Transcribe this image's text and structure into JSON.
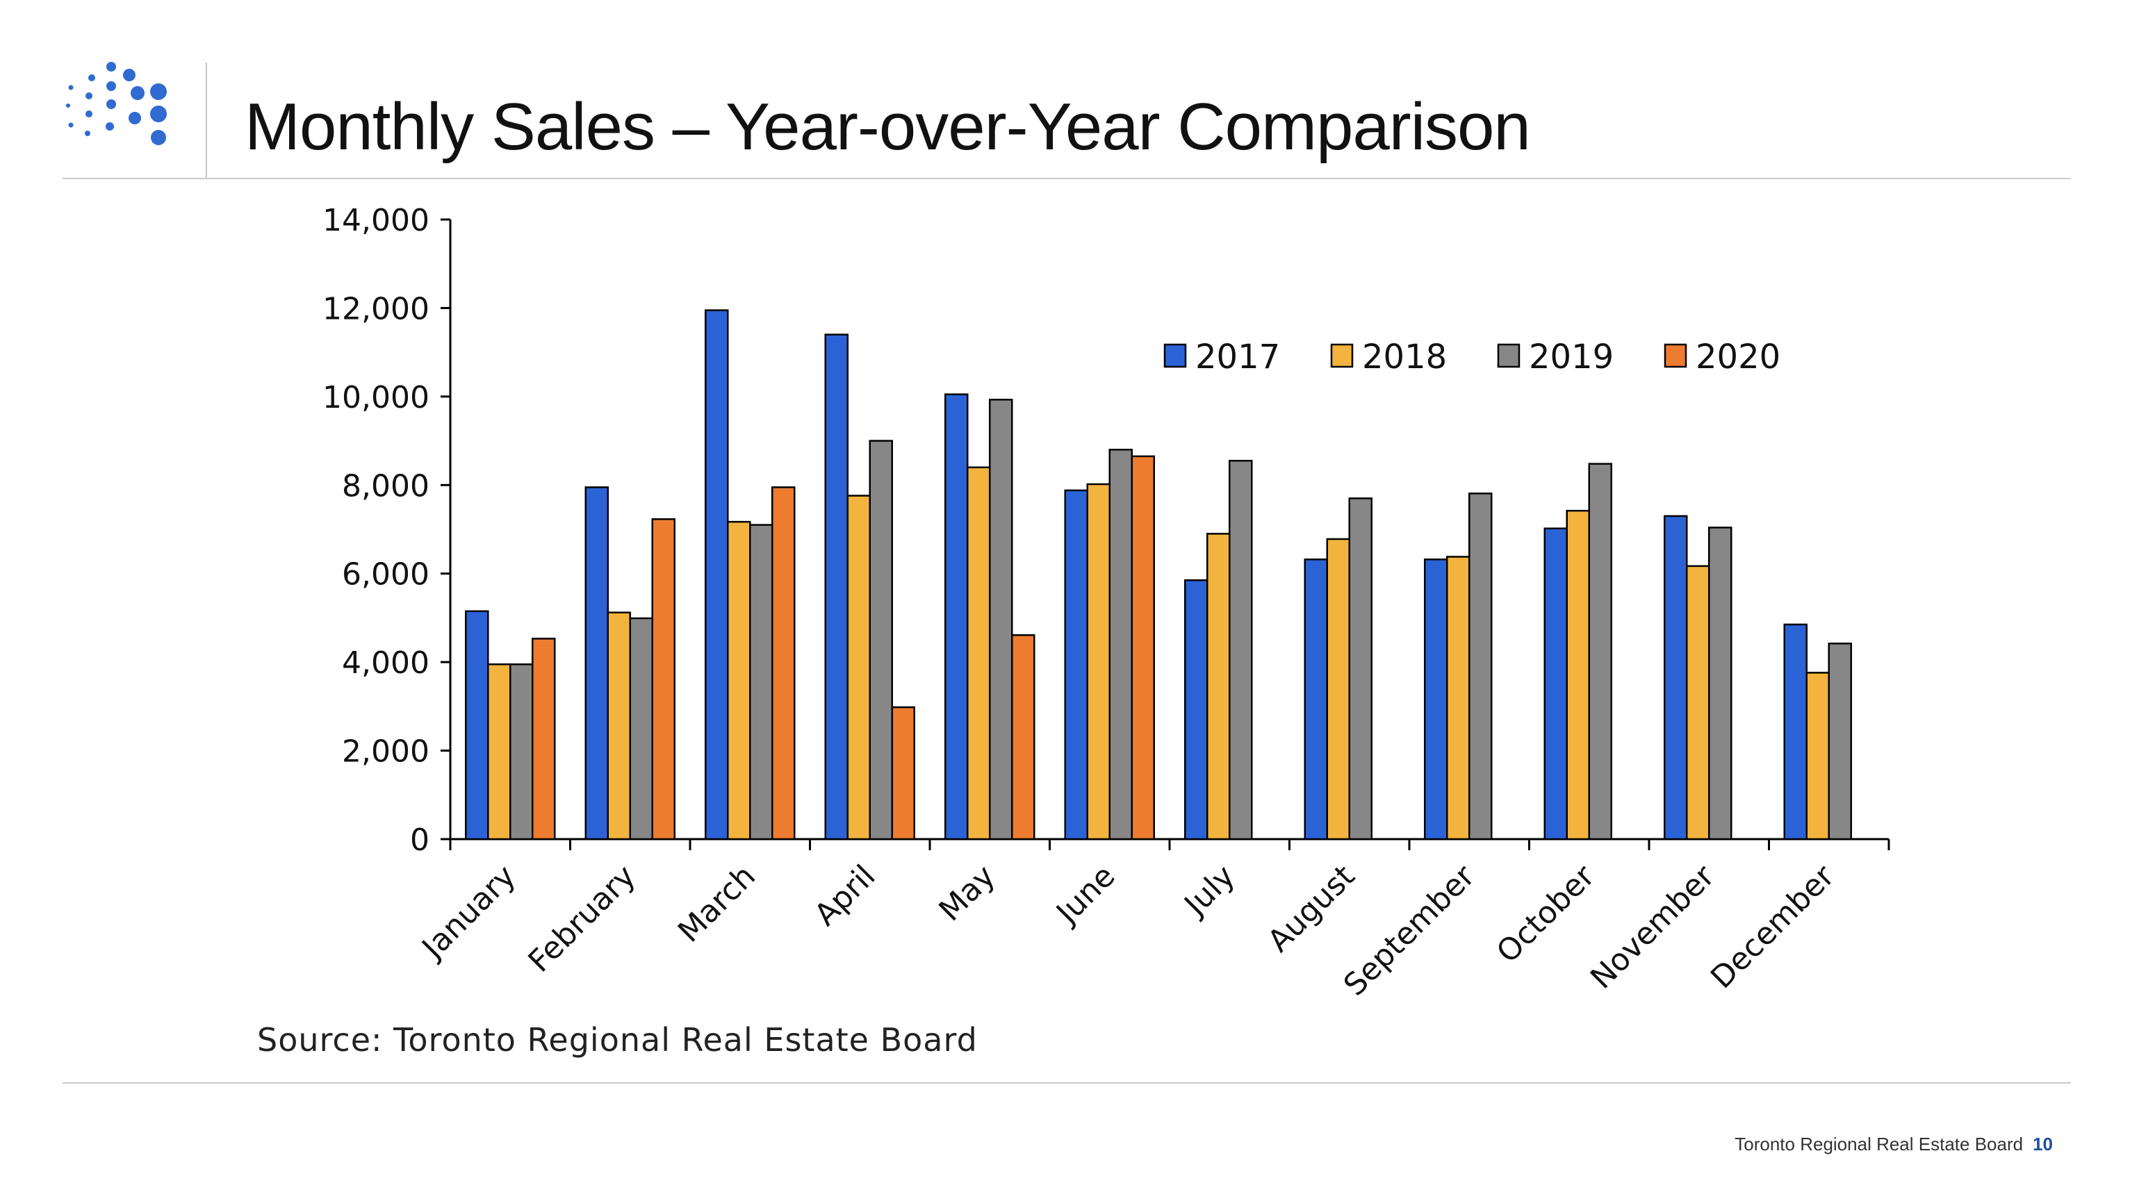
{
  "slide": {
    "title": "Monthly Sales – Year-over-Year Comparison",
    "source": "Source: Toronto Regional Real Estate Board",
    "footer_org": "Toronto Regional Real Estate Board",
    "page_number": "10",
    "logo_icon": "dot-grid-logo-icon",
    "accent_color": "#2f6bd0"
  },
  "chart_data": {
    "type": "bar",
    "title": "",
    "xlabel": "",
    "ylabel": "",
    "ylim": [
      0,
      14000
    ],
    "yticks": [
      "0",
      "2,000",
      "4,000",
      "6,000",
      "8,000",
      "10,000",
      "12,000",
      "14,000"
    ],
    "grid": false,
    "legend_position": "top-right",
    "categories": [
      "January",
      "February",
      "March",
      "April",
      "May",
      "June",
      "July",
      "August",
      "September",
      "October",
      "November",
      "December"
    ],
    "series": [
      {
        "name": "2017",
        "color": "#2b63d6",
        "values": [
          5150,
          7950,
          11950,
          11400,
          10050,
          7880,
          5850,
          6320,
          6320,
          7020,
          7300,
          4850
        ]
      },
      {
        "name": "2018",
        "color": "#f2b43e",
        "values": [
          3950,
          5120,
          7170,
          7760,
          8400,
          8020,
          6900,
          6780,
          6380,
          7420,
          6170,
          3760
        ]
      },
      {
        "name": "2019",
        "color": "#878787",
        "values": [
          3950,
          4990,
          7100,
          9000,
          9930,
          8800,
          8550,
          7700,
          7810,
          8480,
          7040,
          4420
        ]
      },
      {
        "name": "2020",
        "color": "#ed7c31",
        "values": [
          4530,
          7230,
          7950,
          2980,
          4610,
          8650,
          null,
          null,
          null,
          null,
          null,
          null
        ]
      }
    ]
  }
}
